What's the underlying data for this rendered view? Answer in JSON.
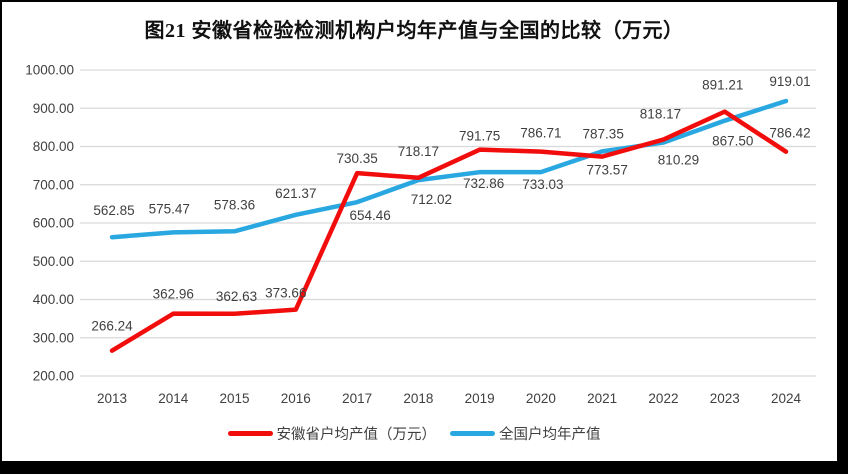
{
  "frame": {
    "color": "#000000"
  },
  "chart_data": {
    "type": "line",
    "title": "图21 安徽省检验检测机构户均年产值与全国的比较（万元）",
    "categories": [
      "2013",
      "2014",
      "2015",
      "2016",
      "2017",
      "2018",
      "2019",
      "2020",
      "2021",
      "2022",
      "2023",
      "2024"
    ],
    "xlabel": "",
    "ylabel": "",
    "ylim": [
      200,
      1000
    ],
    "y_tick_labels": [
      "1000.00",
      "900.00",
      "800.00",
      "700.00",
      "600.00",
      "500.00",
      "400.00",
      "300.00",
      "200.00"
    ],
    "grid": "horizontal",
    "legend_position": "bottom",
    "data_labels": true,
    "label_format": "0.00",
    "colors": {
      "grid": "#d9d9d9",
      "axis_text": "#404040",
      "label_text": "#3f3f3f",
      "title_text": "#111111"
    },
    "series": [
      {
        "name": "安徽省户均产值（万元）",
        "color": "#f20d0d",
        "values": [
          266.24,
          362.96,
          362.63,
          373.66,
          730.35,
          718.17,
          791.75,
          786.71,
          773.57,
          818.17,
          891.21,
          786.42
        ],
        "label_side": [
          "above",
          "above",
          "above",
          "above",
          "above",
          "above",
          "above",
          "above",
          "below",
          "above",
          "above",
          "above"
        ],
        "label_dy": [
          20,
          15,
          13,
          12,
          10,
          22,
          9,
          14,
          18,
          21,
          22,
          14
        ],
        "label_dx": [
          0,
          0,
          2,
          -10,
          0,
          0,
          0,
          0,
          5,
          -3,
          -2,
          4
        ]
      },
      {
        "name": "全国户均年产值",
        "color": "#29a7e0",
        "values": [
          562.85,
          575.47,
          578.36,
          621.37,
          654.46,
          712.02,
          732.86,
          733.03,
          787.35,
          810.29,
          867.5,
          919.01
        ],
        "label_side": [
          "above",
          "above",
          "above",
          "above",
          "below",
          "below",
          "below",
          "below",
          "above",
          "below",
          "below",
          "above"
        ],
        "label_dy": [
          22,
          19,
          22,
          17,
          18,
          24,
          16,
          17,
          13,
          22,
          25,
          15
        ],
        "label_dx": [
          2,
          -4,
          0,
          0,
          13,
          13,
          4,
          2,
          1,
          15,
          8,
          4
        ]
      }
    ]
  }
}
